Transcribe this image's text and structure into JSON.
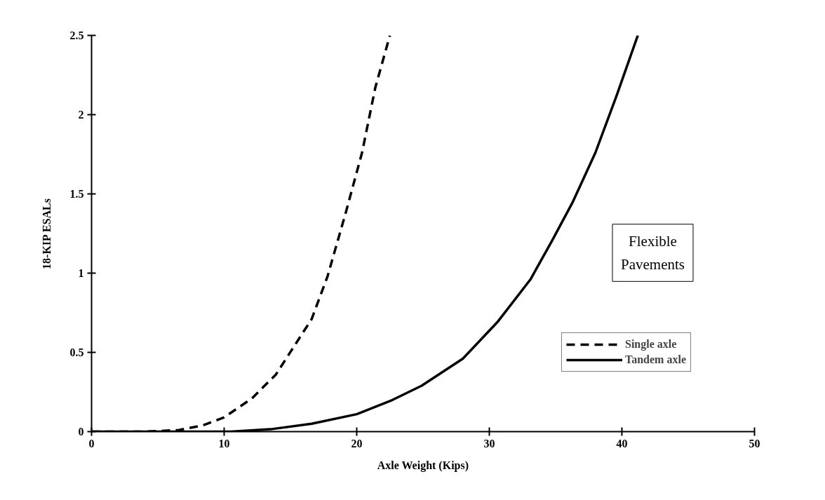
{
  "chart_data": {
    "type": "line",
    "xlabel": "Axle Weight (Kips)",
    "ylabel": "18-KIP ESALs",
    "xlim": [
      0,
      50
    ],
    "xticks": [
      0,
      10,
      20,
      30,
      40,
      50
    ],
    "ylim": [
      0,
      2.5
    ],
    "yticks": [
      0,
      0.5,
      1,
      1.5,
      2,
      2.5
    ],
    "grid": false,
    "legend": "right",
    "marker": "none",
    "annotations": [
      "Flexible Pavements"
    ],
    "series": [
      {
        "name": "Single axle",
        "color": "#000000",
        "line_style": "dashed",
        "x": [
          0,
          4,
          6.6,
          8.4,
          10,
          12.1,
          13.9,
          16.6,
          17.8,
          19.2,
          20.4,
          21.4,
          22.5
        ],
        "values": [
          0,
          0,
          0.01,
          0.04,
          0.09,
          0.21,
          0.36,
          0.71,
          0.98,
          1.39,
          1.76,
          2.17,
          2.5
        ]
      },
      {
        "name": "Tandem axle",
        "color": "#000000",
        "line_style": "solid",
        "x": [
          0,
          10.5,
          13.5,
          16.6,
          20,
          22.7,
          24.9,
          28,
          30.6,
          33.1,
          34.7,
          36.3,
          38,
          39.6,
          41.2
        ],
        "values": [
          0,
          0,
          0.015,
          0.05,
          0.11,
          0.2,
          0.29,
          0.46,
          0.69,
          0.96,
          1.2,
          1.45,
          1.76,
          2.12,
          2.5
        ]
      }
    ]
  }
}
